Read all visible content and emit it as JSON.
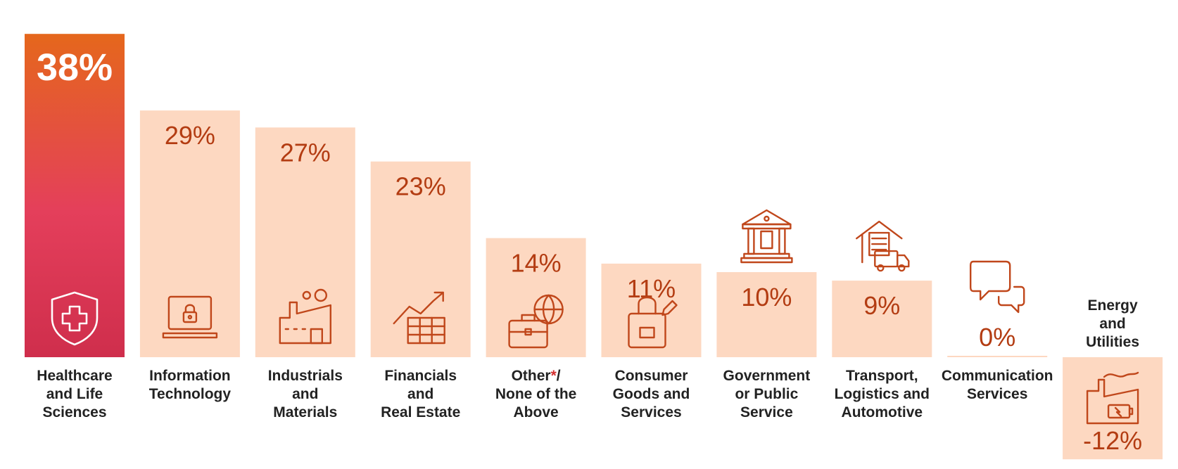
{
  "chart_data": {
    "type": "bar",
    "title": "",
    "xlabel": "",
    "ylabel": "",
    "ylim": [
      -12,
      38
    ],
    "grid": false,
    "legend": "none",
    "highlight_index": 0,
    "colors": {
      "highlight_top": "#e5671c",
      "highlight_mid": "#e43f5b",
      "highlight_bottom": "#cf2e4c",
      "bar_fill": "#fdd8c1",
      "icon_stroke": "#c0471b",
      "value_text": "#b33c12"
    },
    "categories": [
      {
        "label_lines": [
          "Healthcare",
          "and Life",
          "Sciences"
        ],
        "value": 38,
        "value_label": "38%",
        "icon": "shield-cross-icon"
      },
      {
        "label_lines": [
          "Information",
          "Technology"
        ],
        "value": 29,
        "value_label": "29%",
        "icon": "laptop-lock-icon"
      },
      {
        "label_lines": [
          "Industrials",
          "and",
          "Materials"
        ],
        "value": 27,
        "value_label": "27%",
        "icon": "factory-icon"
      },
      {
        "label_lines": [
          "Financials",
          "and",
          "Real Estate"
        ],
        "value": 23,
        "value_label": "23%",
        "icon": "growth-chart-icon"
      },
      {
        "label_lines": [
          "Other*/",
          "None of the",
          "Above"
        ],
        "value": 14,
        "value_label": "14%",
        "icon": "briefcase-globe-icon"
      },
      {
        "label_lines": [
          "Consumer",
          "Goods and",
          "Services"
        ],
        "value": 11,
        "value_label": "11%",
        "icon": "shopping-bag-icon"
      },
      {
        "label_lines": [
          "Government",
          "or Public",
          "Service"
        ],
        "value": 10,
        "value_label": "10%",
        "icon": "government-building-icon"
      },
      {
        "label_lines": [
          "Transport,",
          "Logistics and",
          "Automotive"
        ],
        "value": 9,
        "value_label": "9%",
        "icon": "warehouse-truck-icon"
      },
      {
        "label_lines": [
          "Communication",
          "Services"
        ],
        "value": 0,
        "value_label": "0%",
        "icon": "chat-bubbles-icon"
      },
      {
        "label_lines": [
          "Energy",
          "and",
          "Utilities"
        ],
        "value": -12,
        "value_label": "-12%",
        "icon": "energy-plant-icon"
      }
    ]
  }
}
